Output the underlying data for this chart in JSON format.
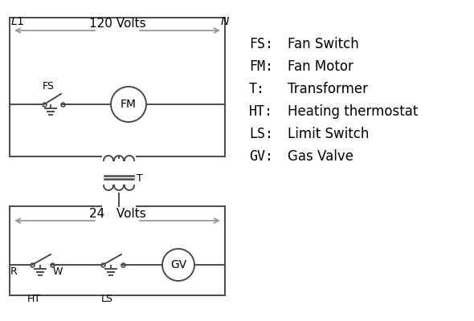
{
  "background_color": "#ffffff",
  "line_color": "#4a4a4a",
  "arrow_color": "#999999",
  "text_color": "#000000",
  "legend_items": [
    [
      "FS:",
      "Fan Switch"
    ],
    [
      "FM:",
      "Fan Motor"
    ],
    [
      "T:",
      "Transformer"
    ],
    [
      "HT:",
      "Heating thermostat"
    ],
    [
      "LS:",
      "Limit Switch"
    ],
    [
      "GV:",
      "Gas Valve"
    ]
  ],
  "volt120": "120 Volts",
  "volt24": "24   Volts",
  "L1": "L1",
  "N": "N",
  "T_label": "T",
  "FS_label": "FS",
  "FM_label": "FM",
  "R_label": "R",
  "W_label": "W",
  "HT_label": "HT",
  "LS_label": "LS",
  "GV_label": "GV"
}
